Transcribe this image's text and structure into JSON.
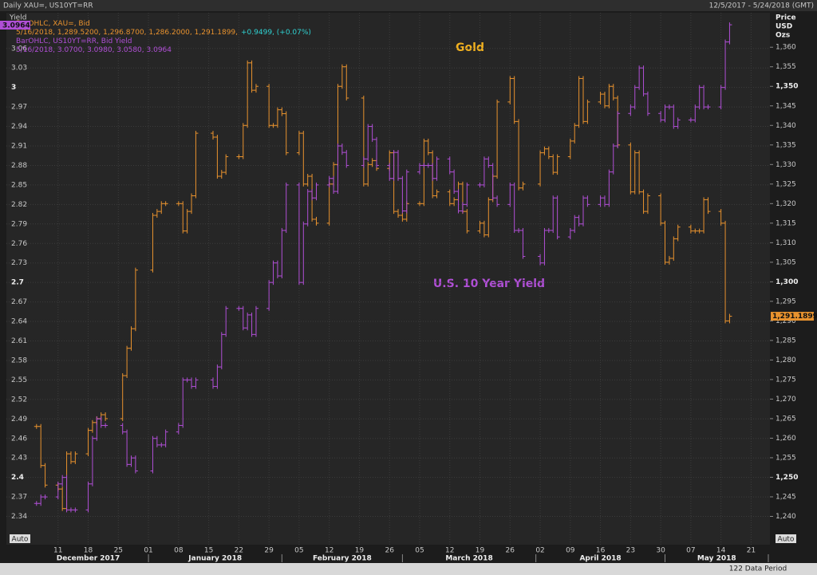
{
  "chart_data": {
    "type": "ohlc_close",
    "title": "Daily XAU=, US10YT=RR",
    "subtitle": "12/5/2017 - 5/24/2018 (GMT)",
    "y_label": "Yield",
    "y2_label": [
      "Price",
      "USD",
      "Ozs"
    ],
    "legend": [
      {
        "text": "BarOHLC, XAU=, Bid",
        "color": "#e8922e"
      },
      {
        "text": "5/16/2018, 1,289.5200, 1,296.8700, 1,286.2000, 1,291.1899,",
        "color": "#e8922e",
        "extra": "+0.9499, (+0.07%)",
        "extra_color": "#2fd3d3"
      },
      {
        "text": "BarOHLC, US10YT=RR, Bid Yield",
        "color": "#b04fd6"
      },
      {
        "text": "5/16/2018, 3.0700, 3.0980, 3.0580, 3.0964",
        "color": "#b04fd6"
      }
    ],
    "annotations": [
      "Gold",
      "U.S. 10 Year Yield"
    ],
    "badges": {
      "y": "3.0964",
      "y2": "1,291.1899"
    },
    "buttons": [
      "Auto",
      "Auto"
    ],
    "footer": "122 Data Period",
    "x": [
      "2017-12-06",
      "2017-12-07",
      "2017-12-08",
      "2017-12-11",
      "2017-12-12",
      "2017-12-13",
      "2017-12-14",
      "2017-12-15",
      "2017-12-18",
      "2017-12-19",
      "2017-12-20",
      "2017-12-21",
      "2017-12-22",
      "2017-12-26",
      "2017-12-27",
      "2017-12-28",
      "2017-12-29",
      "2018-01-02",
      "2018-01-03",
      "2018-01-04",
      "2018-01-05",
      "2018-01-08",
      "2018-01-09",
      "2018-01-10",
      "2018-01-11",
      "2018-01-12",
      "2018-01-16",
      "2018-01-17",
      "2018-01-18",
      "2018-01-19",
      "2018-01-22",
      "2018-01-23",
      "2018-01-24",
      "2018-01-25",
      "2018-01-26",
      "2018-01-29",
      "2018-01-30",
      "2018-01-31",
      "2018-02-01",
      "2018-02-02",
      "2018-02-05",
      "2018-02-06",
      "2018-02-07",
      "2018-02-08",
      "2018-02-09",
      "2018-02-12",
      "2018-02-13",
      "2018-02-14",
      "2018-02-15",
      "2018-02-16",
      "2018-02-20",
      "2018-02-21",
      "2018-02-22",
      "2018-02-23",
      "2018-02-26",
      "2018-02-27",
      "2018-02-28",
      "2018-03-01",
      "2018-03-02",
      "2018-03-05",
      "2018-03-06",
      "2018-03-07",
      "2018-03-08",
      "2018-03-09",
      "2018-03-12",
      "2018-03-13",
      "2018-03-14",
      "2018-03-15",
      "2018-03-16",
      "2018-03-19",
      "2018-03-20",
      "2018-03-21",
      "2018-03-22",
      "2018-03-23",
      "2018-03-26",
      "2018-03-27",
      "2018-03-28",
      "2018-03-29",
      "2018-04-02",
      "2018-04-03",
      "2018-04-04",
      "2018-04-05",
      "2018-04-06",
      "2018-04-09",
      "2018-04-10",
      "2018-04-11",
      "2018-04-12",
      "2018-04-13",
      "2018-04-16",
      "2018-04-17",
      "2018-04-18",
      "2018-04-19",
      "2018-04-20",
      "2018-04-23",
      "2018-04-24",
      "2018-04-25",
      "2018-04-26",
      "2018-04-27",
      "2018-04-30",
      "2018-05-01",
      "2018-05-02",
      "2018-05-03",
      "2018-05-04",
      "2018-05-07",
      "2018-05-08",
      "2018-05-09",
      "2018-05-10",
      "2018-05-11",
      "2018-05-14",
      "2018-05-15",
      "2018-05-16"
    ],
    "series": [
      {
        "name": "XAU=",
        "color": "#e8922e",
        "axis": "y2",
        "values": [
          1263,
          1253,
          1248,
          1247,
          1242,
          1256,
          1254,
          1256,
          1262,
          1264,
          1265,
          1266,
          1265,
          1276,
          1283,
          1288,
          1303,
          1317,
          1318,
          1320,
          1320,
          1320,
          1313,
          1318,
          1322,
          1338,
          1337,
          1327,
          1328,
          1332,
          1332,
          1340,
          1356,
          1349,
          1350,
          1340,
          1340,
          1344,
          1343,
          1333,
          1338,
          1325,
          1327,
          1316,
          1315,
          1325,
          1330,
          1350,
          1355,
          1347,
          1325,
          1330,
          1331,
          1329,
          1333,
          1318,
          1317,
          1316,
          1320,
          1320,
          1336,
          1333,
          1322,
          1323,
          1320,
          1321,
          1325,
          1318,
          1313,
          1315,
          1312,
          1321,
          1327,
          1346,
          1352,
          1341,
          1324,
          1325,
          1333,
          1334,
          1332,
          1328,
          1332,
          1336,
          1340,
          1352,
          1341,
          1346,
          1348,
          1345,
          1350,
          1347,
          1335,
          1323,
          1333,
          1323,
          1318,
          1322,
          1315,
          1305,
          1306,
          1311,
          1314,
          1313,
          1313,
          1313,
          1321,
          1318,
          1315,
          1290,
          1291.1899
        ]
      },
      {
        "name": "US10YT=RR",
        "color": "#b04fd6",
        "values": [
          2.36,
          2.37,
          2.37,
          2.39,
          2.4,
          2.35,
          2.35,
          2.35,
          2.39,
          2.46,
          2.49,
          2.48,
          2.48,
          2.47,
          2.42,
          2.43,
          2.41,
          2.46,
          2.45,
          2.45,
          2.47,
          2.48,
          2.55,
          2.55,
          2.54,
          2.55,
          2.54,
          2.57,
          2.62,
          2.66,
          2.66,
          2.63,
          2.65,
          2.62,
          2.66,
          2.7,
          2.73,
          2.71,
          2.78,
          2.85,
          2.7,
          2.79,
          2.84,
          2.83,
          2.85,
          2.86,
          2.84,
          2.91,
          2.9,
          2.88,
          2.89,
          2.94,
          2.92,
          2.88,
          2.86,
          2.9,
          2.86,
          2.81,
          2.87,
          2.88,
          2.88,
          2.88,
          2.86,
          2.89,
          2.87,
          2.84,
          2.81,
          2.82,
          2.85,
          2.85,
          2.89,
          2.88,
          2.83,
          2.82,
          2.85,
          2.78,
          2.78,
          2.74,
          2.73,
          2.78,
          2.78,
          2.83,
          2.77,
          2.78,
          2.8,
          2.79,
          2.83,
          2.82,
          2.83,
          2.82,
          2.87,
          2.91,
          2.96,
          2.97,
          3.0,
          3.03,
          2.99,
          2.96,
          2.95,
          2.97,
          2.97,
          2.94,
          2.95,
          2.95,
          2.97,
          3.0,
          2.97,
          2.97,
          3.0,
          3.07,
          3.0964
        ]
      }
    ],
    "xlim": [
      "2017-12-04",
      "2018-05-25"
    ],
    "xticks": [
      {
        "value": "2017-12-11",
        "label": "11"
      },
      {
        "value": "2017-12-18",
        "label": "18"
      },
      {
        "value": "2017-12-25",
        "label": "25"
      },
      {
        "value": "2018-01-01",
        "label": "01"
      },
      {
        "value": "2018-01-08",
        "label": "08"
      },
      {
        "value": "2018-01-15",
        "label": "15"
      },
      {
        "value": "2018-01-22",
        "label": "22"
      },
      {
        "value": "2018-01-29",
        "label": "29"
      },
      {
        "value": "2018-02-05",
        "label": "05"
      },
      {
        "value": "2018-02-12",
        "label": "12"
      },
      {
        "value": "2018-02-19",
        "label": "19"
      },
      {
        "value": "2018-02-26",
        "label": "26"
      },
      {
        "value": "2018-03-05",
        "label": "05"
      },
      {
        "value": "2018-03-12",
        "label": "12"
      },
      {
        "value": "2018-03-19",
        "label": "19"
      },
      {
        "value": "2018-03-26",
        "label": "26"
      },
      {
        "value": "2018-04-02",
        "label": "02"
      },
      {
        "value": "2018-04-09",
        "label": "09"
      },
      {
        "value": "2018-04-16",
        "label": "16"
      },
      {
        "value": "2018-04-23",
        "label": "23"
      },
      {
        "value": "2018-04-30",
        "label": "30"
      },
      {
        "value": "2018-05-07",
        "label": "07"
      },
      {
        "value": "2018-05-14",
        "label": "14"
      },
      {
        "value": "2018-05-21",
        "label": "21"
      }
    ],
    "months": [
      {
        "label": "December 2017",
        "start": "2017-12-04",
        "end": "2018-01-01"
      },
      {
        "label": "January 2018",
        "start": "2018-01-01",
        "end": "2018-02-01"
      },
      {
        "label": "February 2018",
        "start": "2018-02-01",
        "end": "2018-03-01"
      },
      {
        "label": "March 2018",
        "start": "2018-03-01",
        "end": "2018-04-01"
      },
      {
        "label": "April 2018",
        "start": "2018-04-01",
        "end": "2018-05-01"
      },
      {
        "label": "May 2018",
        "start": "2018-05-01",
        "end": "2018-05-25"
      }
    ],
    "ylim": [
      2.31,
      3.11
    ],
    "yticks": [
      2.34,
      2.37,
      2.4,
      2.43,
      2.46,
      2.49,
      2.52,
      2.55,
      2.58,
      2.61,
      2.64,
      2.67,
      2.7,
      2.73,
      2.76,
      2.79,
      2.82,
      2.85,
      2.88,
      2.91,
      2.94,
      2.97,
      3,
      3.03,
      3.06
    ],
    "y2lim": [
      1235,
      1368
    ],
    "y2ticks": [
      {
        "value": 1240,
        "label": "1,240"
      },
      {
        "value": 1245,
        "label": "1,245"
      },
      {
        "value": 1250,
        "label": "1,250"
      },
      {
        "value": 1255,
        "label": "1,255"
      },
      {
        "value": 1260,
        "label": "1,260"
      },
      {
        "value": 1265,
        "label": "1,265"
      },
      {
        "value": 1270,
        "label": "1,270"
      },
      {
        "value": 1275,
        "label": "1,275"
      },
      {
        "value": 1280,
        "label": "1,280"
      },
      {
        "value": 1285,
        "label": "1,285"
      },
      {
        "value": 1290,
        "label": "1,290"
      },
      {
        "value": 1295,
        "label": "1,295"
      },
      {
        "value": 1300,
        "label": "1,300"
      },
      {
        "value": 1305,
        "label": "1,305"
      },
      {
        "value": 1310,
        "label": "1,310"
      },
      {
        "value": 1315,
        "label": "1,315"
      },
      {
        "value": 1320,
        "label": "1,320"
      },
      {
        "value": 1325,
        "label": "1,325"
      },
      {
        "value": 1330,
        "label": "1,330"
      },
      {
        "value": 1335,
        "label": "1,335"
      },
      {
        "value": 1340,
        "label": "1,340"
      },
      {
        "value": 1345,
        "label": "1,345"
      },
      {
        "value": 1350,
        "label": "1,350"
      },
      {
        "value": 1355,
        "label": "1,355"
      },
      {
        "value": 1360,
        "label": "1,360"
      }
    ],
    "grid": true
  }
}
